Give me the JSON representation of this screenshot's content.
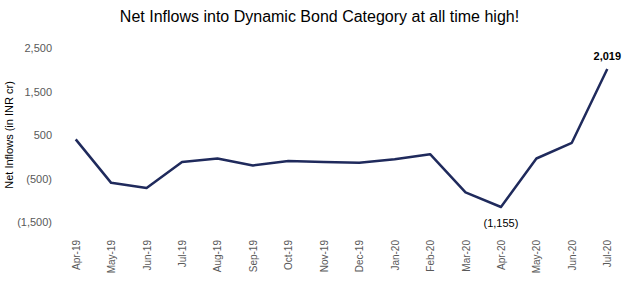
{
  "chart_data": {
    "type": "line",
    "title": "Net Inflows into Dynamic Bond Category at all time high!",
    "ylabel": "Net Inflows (in INR cr)",
    "categories": [
      "Apr-19",
      "May-19",
      "Jun-19",
      "Jul-19",
      "Aug-19",
      "Sep-19",
      "Oct-19",
      "Nov-19",
      "Dec-19",
      "Jan-20",
      "Feb-20",
      "Mar-20",
      "Apr-20",
      "May-20",
      "Jun-20",
      "Jul-20"
    ],
    "values": [
      400,
      -600,
      -720,
      -120,
      -40,
      -200,
      -100,
      -120,
      -140,
      -60,
      60,
      -820,
      -1155,
      -40,
      320,
      2019
    ],
    "value_labels": [
      null,
      null,
      null,
      null,
      null,
      null,
      null,
      null,
      null,
      null,
      null,
      null,
      "(1,155)",
      null,
      null,
      "2,019"
    ],
    "data_labels": true,
    "color": "#1f2a5c",
    "grid": false,
    "ylim": [
      -1500,
      2500
    ],
    "yticks": [
      {
        "value": -1500,
        "label": "(1,500)"
      },
      {
        "value": -500,
        "label": "(500)"
      },
      500,
      {
        "value": 1500,
        "label": "1,500"
      },
      {
        "value": 2500,
        "label": "2,500"
      }
    ]
  }
}
